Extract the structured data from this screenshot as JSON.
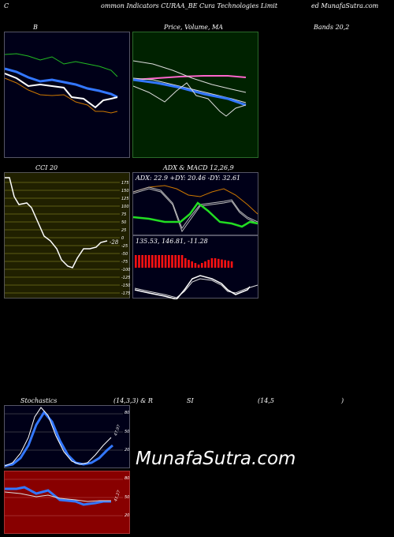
{
  "header": {
    "c": "C",
    "title": "ommon  Indicators CURAA_BE Cura  Technologies Limit",
    "site": "ed MunafaSutra.com"
  },
  "bands": {
    "label_b": "B",
    "label_right": "Bands 20,2"
  },
  "ma": {
    "label": "Price,  Volume,  MA",
    "overlap": "Volume"
  },
  "cci": {
    "label": "CCI 20",
    "value": "-28",
    "ticks": [
      "175",
      "150",
      "125",
      "100",
      "75",
      "50",
      "25",
      "0",
      "-25",
      "-50",
      "-75",
      "-100",
      "-125",
      "-150",
      "-175"
    ]
  },
  "adx": {
    "header": "ADX  & MACD 12,26,9",
    "values": "ADX: 22.9  +DY: 20.46  -DY: 32.61"
  },
  "macd": {
    "values": "135.53,  146.81,  -11.28"
  },
  "stoch": {
    "label": "Stochastics",
    "params": "(14,3,3) & R",
    "rsi": "SI",
    "rsi_params": "(14,5",
    "paren": ")",
    "value": "47.97",
    "ticks": [
      "80",
      "50",
      "20"
    ]
  },
  "rsi": {
    "value": "41.27",
    "ticks": [
      "80",
      "50",
      "20"
    ]
  },
  "watermark": "MunafaSutra.com",
  "colors": {
    "green": "#22dd22",
    "blue": "#3377ff",
    "orange": "#cc7700",
    "red": "#ff1111"
  }
}
